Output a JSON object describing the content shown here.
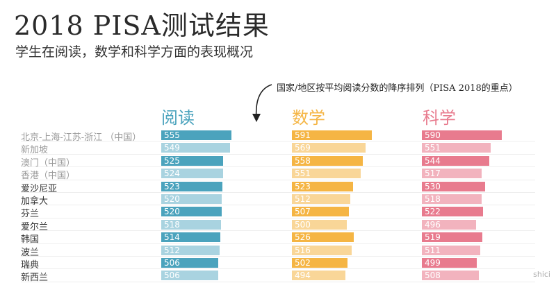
{
  "header": {
    "title": "2018 PISA测试结果",
    "subtitle": "学生在阅读，数学和科学方面的表现概况",
    "note": "国家/地区按平均阅读分数的降序排列（PISA 2018的重点）"
  },
  "chart_data": {
    "type": "bar",
    "series": [
      {
        "name": "阅读",
        "color": "#4ba3bd",
        "color_light": "#a9d3e0",
        "values": [
          555,
          549,
          525,
          524,
          523,
          520,
          520,
          518,
          514,
          512,
          506,
          506
        ]
      },
      {
        "name": "数学",
        "color": "#f5b544",
        "color_light": "#f9d698",
        "values": [
          591,
          569,
          558,
          551,
          523,
          512,
          507,
          500,
          526,
          516,
          502,
          494
        ]
      },
      {
        "name": "科学",
        "color": "#e87b8e",
        "color_light": "#f2b3be",
        "values": [
          590,
          551,
          544,
          517,
          530,
          518,
          522,
          496,
          519,
          511,
          499,
          508
        ]
      }
    ],
    "categories": [
      "北京-上海-江苏-浙江 （中国）",
      "新加坡",
      "澳门（中国）",
      "香港（中国）",
      "爱沙尼亚",
      "加拿大",
      "芬兰",
      "爱尔兰",
      "韩国",
      "波兰",
      "瑞典",
      "新西兰"
    ],
    "faded_rows": [
      0,
      1,
      2,
      3
    ],
    "light_rows": [
      1,
      3,
      5,
      7,
      9,
      11
    ]
  },
  "watermark": "shici"
}
